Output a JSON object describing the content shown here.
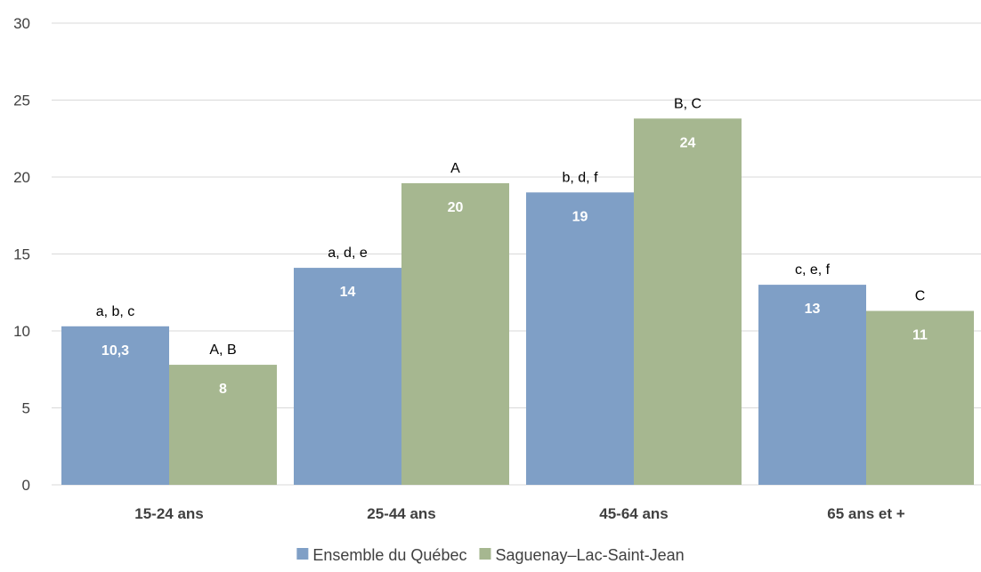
{
  "chart_data": {
    "type": "bar",
    "categories": [
      "15-24 ans",
      "25-44 ans",
      "45-64 ans",
      "65 ans et +"
    ],
    "series": [
      {
        "name": "Ensemble du Québec",
        "color": "#7f9fc6",
        "values": [
          10.3,
          14.1,
          19.0,
          13.0
        ],
        "value_labels": [
          "10,3",
          "14",
          "19",
          "13"
        ],
        "annotations": [
          "a, b, c",
          "a, d, e",
          "b, d, f",
          "c, e, f"
        ]
      },
      {
        "name": "Saguenay–Lac-Saint-Jean",
        "color": "#a6b790",
        "values": [
          7.8,
          19.6,
          23.8,
          11.3
        ],
        "value_labels": [
          "8",
          "20",
          "24",
          "11"
        ],
        "annotations": [
          "A, B",
          "A",
          "B, C",
          "C"
        ]
      }
    ],
    "yticks": [
      "0",
      "5",
      "10",
      "15",
      "20",
      "25",
      "30"
    ],
    "ylim": [
      0,
      30
    ],
    "grid": true,
    "legend": "bottom-center"
  }
}
